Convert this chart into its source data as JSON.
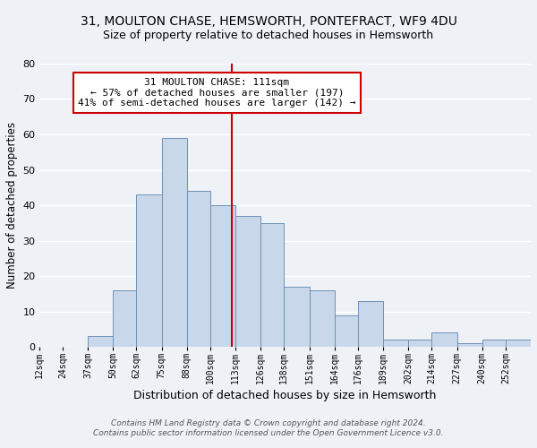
{
  "title1": "31, MOULTON CHASE, HEMSWORTH, PONTEFRACT, WF9 4DU",
  "title2": "Size of property relative to detached houses in Hemsworth",
  "xlabel": "Distribution of detached houses by size in Hemsworth",
  "ylabel": "Number of detached properties",
  "bar_color": "#c8d8ea",
  "bar_edge_color": "#7090b8",
  "background_color": "#eef2f7",
  "grid_color": "#ffffff",
  "vline_x": 111,
  "vline_color": "#cc0000",
  "ann_line1": "31 MOULTON CHASE: 111sqm",
  "ann_line2": "← 57% of detached houses are smaller (197)",
  "ann_line3": "41% of semi-detached houses are larger (142) →",
  "annotation_box_color": "#ffffff",
  "annotation_box_edge": "#cc0000",
  "bins": [
    12,
    24,
    37,
    50,
    62,
    75,
    88,
    100,
    113,
    126,
    138,
    151,
    164,
    176,
    189,
    202,
    214,
    227,
    240,
    252,
    265
  ],
  "heights": [
    0,
    0,
    3,
    16,
    43,
    59,
    44,
    40,
    37,
    35,
    17,
    16,
    9,
    13,
    2,
    2,
    4,
    1,
    2,
    2
  ],
  "ylim": [
    0,
    80
  ],
  "yticks": [
    0,
    10,
    20,
    30,
    40,
    50,
    60,
    70,
    80
  ],
  "footnote1": "Contains HM Land Registry data © Crown copyright and database right 2024.",
  "footnote2": "Contains public sector information licensed under the Open Government Licence v3.0."
}
